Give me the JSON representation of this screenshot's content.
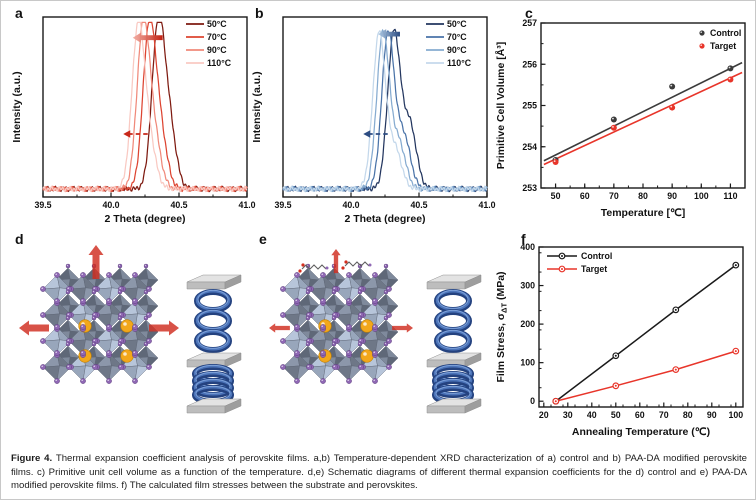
{
  "figure": {
    "caption_label": "Figure 4.",
    "caption_text": " Thermal expansion coefficient analysis of perovskite films. a,b) Temperature-dependent XRD characterization of a) control and b) PAA-DA modified perovskite films. c) Primitive unit cell volume as a function of the temperature. d,e) Schematic diagrams of different thermal expansion coefficients for the d) control and e) PAA-DA modified perovskite films. f) The calculated film stresses between the substrate and perovskites."
  },
  "panels": {
    "a": {
      "label": "a"
    },
    "b": {
      "label": "b"
    },
    "c": {
      "label": "c"
    },
    "d": {
      "label": "d"
    },
    "e": {
      "label": "e"
    },
    "f": {
      "label": "f"
    }
  },
  "chart_data": [
    {
      "panel": "a",
      "type": "line",
      "subtype": "xrd",
      "xlabel": "2 Theta (degree)",
      "ylabel": "Intensity (a.u.)",
      "xlim": [
        39.5,
        41.0
      ],
      "xticks": [
        39.5,
        40.0,
        40.5,
        41.0
      ],
      "x_minor_step": 0.25,
      "series": [
        {
          "name": "50°C",
          "color": "#7e1a10",
          "peak": 40.345,
          "shoulder_offset": 0.08,
          "shoulder_ratio": 0.42
        },
        {
          "name": "70°C",
          "color": "#dd4431",
          "peak": 40.28,
          "shoulder_offset": 0.08,
          "shoulder_ratio": 0.36
        },
        {
          "name": "90°C",
          "color": "#f0897a",
          "peak": 40.235,
          "shoulder_offset": 0.08,
          "shoulder_ratio": 0.33
        },
        {
          "name": "110°C",
          "color": "#f9c9c2",
          "peak": 40.198,
          "shoulder_offset": 0.08,
          "shoulder_ratio": 0.3
        }
      ],
      "shift_arrow": {
        "solid": {
          "x_tail": 40.38,
          "x_tip": 40.16,
          "yfrac": 0.885,
          "color_tail": "#c32011",
          "color_tip": "#f2a99e"
        },
        "dashed": {
          "x_tail": 40.27,
          "x_tip": 40.09,
          "yfrac": 0.35,
          "color": "#c8281a"
        }
      }
    },
    {
      "panel": "b",
      "type": "line",
      "subtype": "xrd",
      "xlabel": "2 Theta (degree)",
      "ylabel": "Intensity (a.u.)",
      "xlim": [
        39.5,
        41.0
      ],
      "xticks": [
        39.5,
        40.0,
        40.5,
        41.0
      ],
      "x_minor_step": 0.25,
      "series": [
        {
          "name": "50°C",
          "color": "#23365f",
          "peak": 40.315,
          "shoulder_offset": 0.115,
          "shoulder_ratio": 0.42
        },
        {
          "name": "70°C",
          "color": "#4a73a8",
          "peak": 40.272,
          "shoulder_offset": 0.115,
          "shoulder_ratio": 0.34
        },
        {
          "name": "90°C",
          "color": "#86abd0",
          "peak": 40.235,
          "shoulder_offset": 0.115,
          "shoulder_ratio": 0.3
        },
        {
          "name": "110°C",
          "color": "#c4d8eb",
          "peak": 40.206,
          "shoulder_offset": 0.115,
          "shoulder_ratio": 0.26
        }
      ],
      "shift_arrow": {
        "solid": {
          "x_tail": 40.36,
          "x_tip": 40.2,
          "yfrac": 0.905,
          "color_tail": "#2d4c82",
          "color_tip": "#a9c6e2"
        },
        "dashed": {
          "x_tail": 40.27,
          "x_tip": 40.09,
          "yfrac": 0.35,
          "color": "#2d4c82"
        }
      }
    },
    {
      "panel": "c",
      "type": "scatter",
      "xlabel": "Temperature [℃]",
      "ylabel": "Primitive Cell Volume [Å³]",
      "xlim": [
        45,
        115
      ],
      "ylim": [
        253,
        257
      ],
      "xticks": [
        50,
        60,
        70,
        80,
        90,
        100,
        110
      ],
      "yticks": [
        253,
        254,
        255,
        256,
        257
      ],
      "x_minor_step": 5,
      "y_minor_step": 0.5,
      "legend_position": "top-right",
      "series": [
        {
          "name": "Control",
          "color": "#3b3b3b",
          "x": [
            50,
            70,
            90,
            110
          ],
          "y": [
            253.68,
            254.66,
            255.46,
            255.9
          ],
          "fit_line": {
            "x": [
              46,
              114
            ],
            "y": [
              253.66,
              256.04
            ]
          }
        },
        {
          "name": "Target",
          "color": "#e8352a",
          "x": [
            50,
            70,
            90,
            110
          ],
          "y": [
            253.63,
            254.46,
            254.95,
            255.63
          ],
          "fit_line": {
            "x": [
              46,
              114
            ],
            "y": [
              253.57,
              255.8
            ]
          }
        }
      ]
    },
    {
      "panel": "f",
      "type": "line",
      "subtype": "line-symbol",
      "xlabel": "Annealing Temperature (℃)",
      "ylabel": "Film Stress, σΔT (MPa)",
      "ylabel_parts": [
        "Film Stress, σ",
        "ΔT",
        " (MPa)"
      ],
      "xlim": [
        18,
        103
      ],
      "ylim": [
        -15,
        400
      ],
      "xticks": [
        20,
        30,
        40,
        50,
        60,
        70,
        80,
        90,
        100
      ],
      "yticks": [
        0,
        100,
        200,
        300,
        400
      ],
      "x_minor_step": 5,
      "y_minor_step": 50,
      "legend_position": "top-left",
      "series": [
        {
          "name": "Control",
          "color": "#1a1a1a",
          "x": [
            25,
            50,
            75,
            100
          ],
          "y": [
            0,
            118,
            237,
            353
          ]
        },
        {
          "name": "Target",
          "color": "#e8352a",
          "x": [
            25,
            50,
            75,
            100
          ],
          "y": [
            0,
            40,
            82,
            130
          ]
        }
      ]
    }
  ],
  "schematics": {
    "d": {
      "label": "d",
      "description": "control perovskite film, large thermal expansion",
      "arrow_scale": 1.0,
      "molecules": false
    },
    "e": {
      "label": "e",
      "description": "PAA-DA modified perovskite film, small thermal expansion",
      "arrow_scale": 0.62,
      "molecules": true
    },
    "colors": {
      "octa_shade1": "#8c97aa",
      "octa_shade2": "#6e7787",
      "octa_shade3": "#b7c5da",
      "octa_shade4": "#98a6bb",
      "octa_back": "#5f6878",
      "octa_back2": "#7f8a9c",
      "halide": "#8f68b4",
      "halide_edge": "#5e3f7e",
      "cation": "#f2a71b",
      "cation_edge": "#c07f00",
      "arrow": "#cf2c1e",
      "spring_dark": "#24427f",
      "spring_mid": "#4c74b9",
      "spring_light": "#7da1d9",
      "plate_top": "#e3e3e3",
      "plate_front": "#bdbdbd",
      "plate_side": "#9e9e9e",
      "molecule_chain": "#606060",
      "molecule_oxygen": "#d22f1f",
      "molecule_nitrogen": "#8f68b4"
    }
  }
}
